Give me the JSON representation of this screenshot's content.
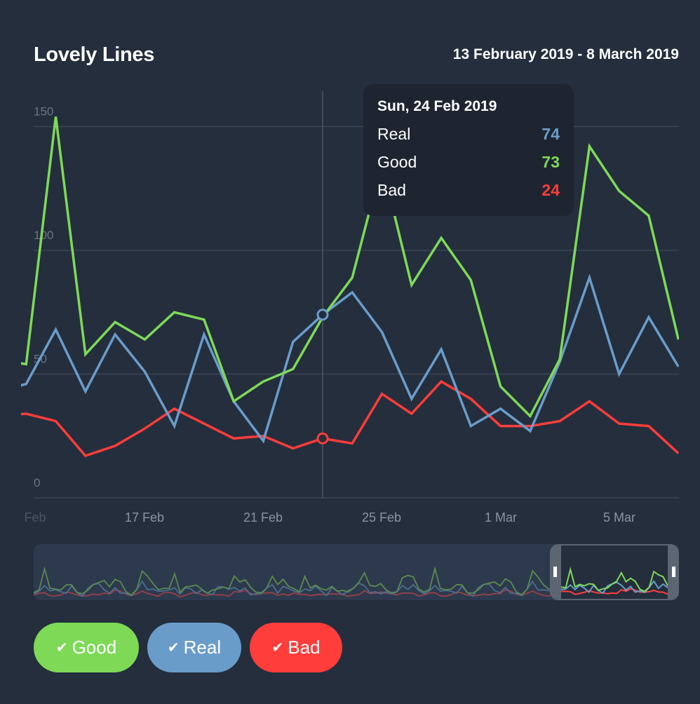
{
  "header": {
    "title": "Lovely Lines",
    "date_range": "13 February 2019 - 8 March 2019"
  },
  "tooltip": {
    "date": "Sun, 24 Feb 2019",
    "rows": [
      {
        "label": "Real",
        "value": "74",
        "color": "#6a9cca"
      },
      {
        "label": "Good",
        "value": "73",
        "color": "#7ed957"
      },
      {
        "label": "Bad",
        "value": "24",
        "color": "#ff3d3a"
      }
    ]
  },
  "legend_buttons": [
    {
      "label": "Good",
      "icon": "check-icon",
      "color": "#7ed957"
    },
    {
      "label": "Real",
      "icon": "check-icon",
      "color": "#6a9cca"
    },
    {
      "label": "Bad",
      "icon": "check-icon",
      "color": "#ff3d3a"
    }
  ],
  "chart_data": {
    "type": "line",
    "title": "Lovely Lines",
    "subtitle": "13 February 2019 - 8 March 2019",
    "x": [
      "13 Feb",
      "14 Feb",
      "15 Feb",
      "16 Feb",
      "17 Feb",
      "18 Feb",
      "19 Feb",
      "20 Feb",
      "21 Feb",
      "22 Feb",
      "23 Feb",
      "24 Feb",
      "25 Feb",
      "26 Feb",
      "27 Feb",
      "28 Feb",
      "1 Mar",
      "2 Mar",
      "3 Mar",
      "4 Mar",
      "5 Mar",
      "6 Mar",
      "7 Mar",
      "8 Mar"
    ],
    "x_tick_labels": [
      "Feb",
      "17 Feb",
      "21 Feb",
      "25 Feb",
      "1 Mar",
      "5 Mar"
    ],
    "y_tick_labels": [
      "0",
      "50",
      "100",
      "150"
    ],
    "ylim": [
      0,
      150
    ],
    "grid": true,
    "highlight": "24 Feb",
    "series": [
      {
        "name": "Good",
        "color": "#7ed957",
        "values": [
          56,
          54,
          154,
          58,
          71,
          64,
          75,
          72,
          39,
          47,
          52,
          73,
          89,
          135,
          86,
          105,
          88,
          45,
          33,
          56,
          142,
          124,
          114,
          64
        ]
      },
      {
        "name": "Real",
        "color": "#6a9cca",
        "values": [
          43,
          46,
          68,
          43,
          66,
          51,
          29,
          66,
          39,
          23,
          63,
          74,
          83,
          67,
          40,
          60,
          29,
          36,
          27,
          55,
          89,
          50,
          73,
          53
        ]
      },
      {
        "name": "Bad",
        "color": "#ff3d3a",
        "values": [
          33,
          34,
          31,
          17,
          21,
          28,
          36,
          30,
          24,
          25,
          20,
          24,
          22,
          42,
          34,
          47,
          40,
          29,
          29,
          31,
          39,
          30,
          29,
          18
        ]
      }
    ]
  }
}
